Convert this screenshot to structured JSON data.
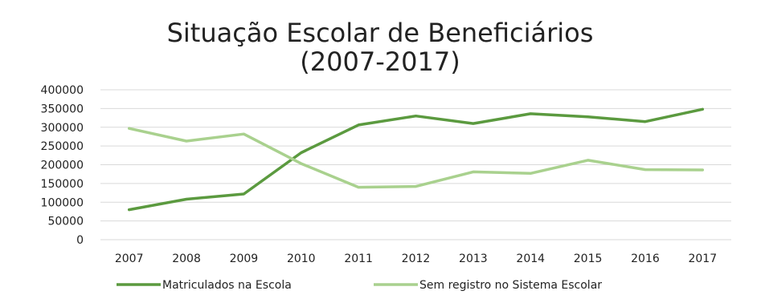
{
  "chart_data": {
    "type": "line",
    "title": [
      "Situação Escolar de Beneficiários",
      "(2007-2017)"
    ],
    "categories": [
      "2007",
      "2008",
      "2009",
      "2010",
      "2011",
      "2012",
      "2013",
      "2014",
      "2015",
      "2016",
      "2017"
    ],
    "y_ticks": [
      "400000",
      "350000",
      "300000",
      "250000",
      "200000",
      "150000",
      "100000",
      "50000",
      "0"
    ],
    "ylim": [
      0,
      400000
    ],
    "grid": true,
    "legend_position": "bottom",
    "series": [
      {
        "name": "Matriculados na Escola",
        "color": "#5b9a3f",
        "values": [
          80000,
          108000,
          122000,
          232000,
          306000,
          330000,
          310000,
          336000,
          328000,
          315000,
          348000
        ]
      },
      {
        "name": "Sem registro no Sistema Escolar",
        "color": "#a9d18e",
        "values": [
          297000,
          263000,
          282000,
          203000,
          140000,
          142000,
          181000,
          177000,
          212000,
          187000,
          186000
        ]
      }
    ]
  }
}
